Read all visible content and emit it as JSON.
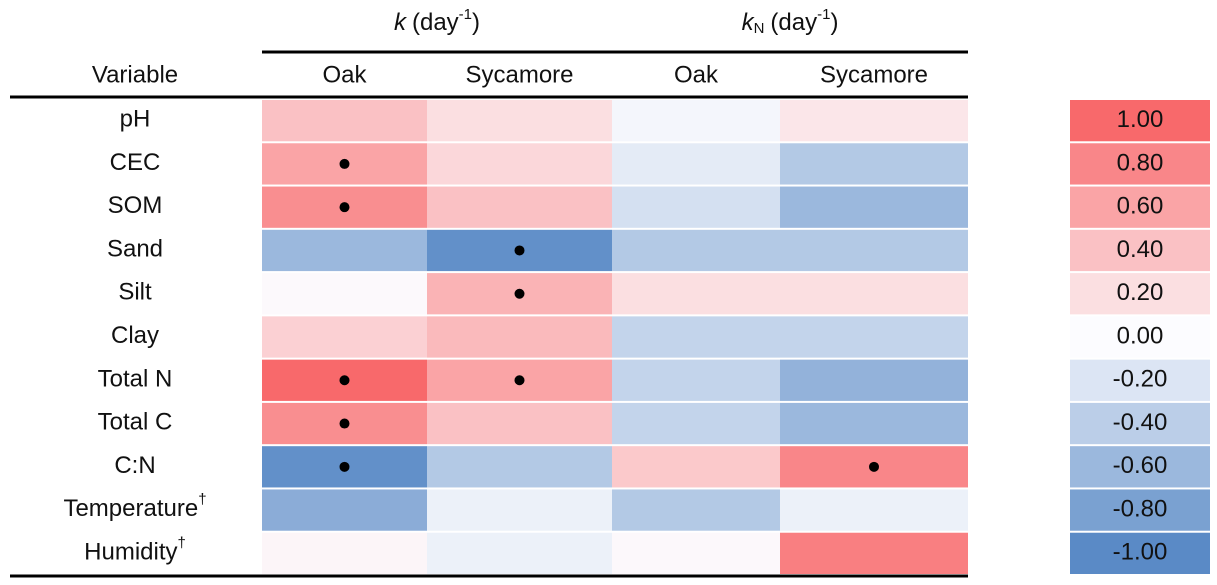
{
  "chart_data": {
    "type": "heatmap",
    "groups": [
      {
        "symbol": "k",
        "unit": "(day",
        "exponent": "-1",
        "suffix": ")"
      },
      {
        "symbol": "k",
        "subscript": "N",
        "unit": "(day",
        "exponent": "-1",
        "suffix": ")"
      }
    ],
    "row_header": "Variable",
    "columns": [
      "Oak",
      "Sycamore",
      "Oak",
      "Sycamore"
    ],
    "rows": [
      {
        "label": "pH"
      },
      {
        "label": "CEC"
      },
      {
        "label": "SOM"
      },
      {
        "label": "Sand"
      },
      {
        "label": "Silt"
      },
      {
        "label": "Clay"
      },
      {
        "label": "Total N"
      },
      {
        "label": "Total C"
      },
      {
        "label": "C:N"
      },
      {
        "label": "Temperature",
        "mark": "†"
      },
      {
        "label": "Humidity",
        "mark": "†"
      }
    ],
    "values": [
      [
        0.4,
        0.2,
        -0.05,
        0.15
      ],
      [
        0.6,
        0.25,
        -0.15,
        -0.45
      ],
      [
        0.75,
        0.4,
        -0.25,
        -0.6
      ],
      [
        -0.6,
        -0.95,
        -0.45,
        -0.45
      ],
      [
        0.02,
        0.5,
        0.2,
        0.2
      ],
      [
        0.3,
        0.45,
        -0.35,
        -0.35
      ],
      [
        1.0,
        0.6,
        -0.35,
        -0.65
      ],
      [
        0.75,
        0.4,
        -0.35,
        -0.6
      ],
      [
        -0.95,
        -0.45,
        0.35,
        0.8
      ],
      [
        -0.7,
        -0.1,
        -0.45,
        -0.1
      ],
      [
        0.05,
        -0.1,
        0.03,
        0.85
      ]
    ],
    "significant": [
      [
        false,
        false,
        false,
        false
      ],
      [
        true,
        false,
        false,
        false
      ],
      [
        true,
        false,
        false,
        false
      ],
      [
        false,
        true,
        false,
        false
      ],
      [
        false,
        true,
        false,
        false
      ],
      [
        false,
        false,
        false,
        false
      ],
      [
        true,
        true,
        false,
        false
      ],
      [
        true,
        false,
        false,
        false
      ],
      [
        true,
        false,
        false,
        true
      ],
      [
        false,
        false,
        false,
        false
      ],
      [
        false,
        false,
        false,
        false
      ]
    ],
    "colorscale": {
      "colors": [
        "#5a8ac6",
        "#fcfcff",
        "#f8696b"
      ],
      "ticks": [
        {
          "value": 1,
          "label": "1.00"
        },
        {
          "value": 0.8,
          "label": "0.80"
        },
        {
          "value": 0.6,
          "label": "0.60"
        },
        {
          "value": 0.4,
          "label": "0.40"
        },
        {
          "value": 0.2,
          "label": "0.20"
        },
        {
          "value": 0,
          "label": "0.00"
        },
        {
          "value": -0.2,
          "label": "-0.20"
        },
        {
          "value": -0.4,
          "label": "-0.40"
        },
        {
          "value": -0.6,
          "label": "-0.60"
        },
        {
          "value": -0.8,
          "label": "-0.80"
        },
        {
          "value": -1,
          "label": "-1.00"
        }
      ]
    }
  }
}
